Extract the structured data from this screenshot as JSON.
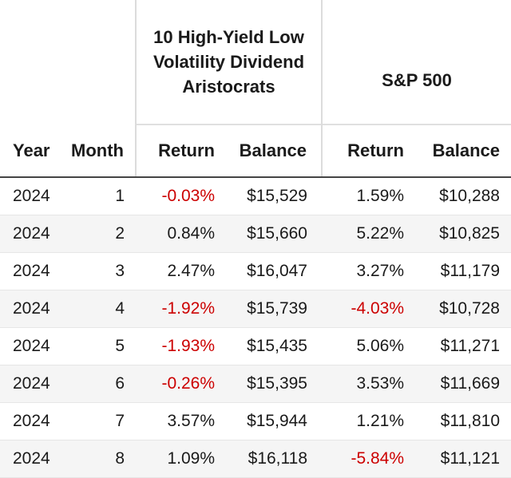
{
  "table": {
    "group_headers": {
      "portfolio": "10 High-Yield Low Volatility Dividend Aristocrats",
      "benchmark": "S&P 500"
    },
    "columns": {
      "year": "Year",
      "month": "Month",
      "portfolio_return": "Return",
      "portfolio_balance": "Balance",
      "benchmark_return": "Return",
      "benchmark_balance": "Balance"
    },
    "negative_color": "#cc0000",
    "rows": [
      {
        "year": "2024",
        "month": "1",
        "portfolio_return": "-0.03%",
        "portfolio_balance": "$15,529",
        "benchmark_return": "1.59%",
        "benchmark_balance": "$10,288"
      },
      {
        "year": "2024",
        "month": "2",
        "portfolio_return": "0.84%",
        "portfolio_balance": "$15,660",
        "benchmark_return": "5.22%",
        "benchmark_balance": "$10,825"
      },
      {
        "year": "2024",
        "month": "3",
        "portfolio_return": "2.47%",
        "portfolio_balance": "$16,047",
        "benchmark_return": "3.27%",
        "benchmark_balance": "$11,179"
      },
      {
        "year": "2024",
        "month": "4",
        "portfolio_return": "-1.92%",
        "portfolio_balance": "$15,739",
        "benchmark_return": "-4.03%",
        "benchmark_balance": "$10,728"
      },
      {
        "year": "2024",
        "month": "5",
        "portfolio_return": "-1.93%",
        "portfolio_balance": "$15,435",
        "benchmark_return": "5.06%",
        "benchmark_balance": "$11,271"
      },
      {
        "year": "2024",
        "month": "6",
        "portfolio_return": "-0.26%",
        "portfolio_balance": "$15,395",
        "benchmark_return": "3.53%",
        "benchmark_balance": "$11,669"
      },
      {
        "year": "2024",
        "month": "7",
        "portfolio_return": "3.57%",
        "portfolio_balance": "$15,944",
        "benchmark_return": "1.21%",
        "benchmark_balance": "$11,810"
      },
      {
        "year": "2024",
        "month": "8",
        "portfolio_return": "1.09%",
        "portfolio_balance": "$16,118",
        "benchmark_return": "-5.84%",
        "benchmark_balance": "$11,121"
      }
    ]
  }
}
